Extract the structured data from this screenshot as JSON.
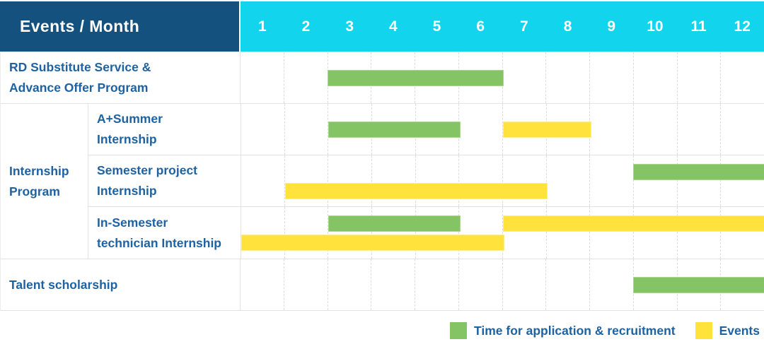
{
  "header": {
    "title": "Events / Month",
    "months": [
      "1",
      "2",
      "3",
      "4",
      "5",
      "6",
      "7",
      "8",
      "9",
      "10",
      "11",
      "12"
    ]
  },
  "colors": {
    "header_bg": "#14517E",
    "month_strip_bg": "#12D4EC",
    "application_green": "#84C464",
    "event_yellow": "#FFE33C",
    "label_text_blue": "#1E62A1"
  },
  "chart_data": {
    "type": "gantt",
    "x_axis_label": "Month",
    "months": [
      1,
      2,
      3,
      4,
      5,
      6,
      7,
      8,
      9,
      10,
      11,
      12
    ],
    "rows": [
      {
        "label": "RD Substitute Service &\nAdvance Offer Program",
        "group": null,
        "bars": [
          {
            "type": "application",
            "start": 3,
            "end": 6,
            "line": "center"
          }
        ]
      },
      {
        "label": "A+Summer\nInternship",
        "group": "Internship\nProgram",
        "bars": [
          {
            "type": "application",
            "start": 3,
            "end": 5,
            "line": "center"
          },
          {
            "type": "event",
            "start": 7,
            "end": 8,
            "line": "center"
          }
        ]
      },
      {
        "label": "Semester project\nInternship",
        "group": "Internship\nProgram",
        "bars": [
          {
            "type": "application",
            "start": 10,
            "end": 12,
            "line": "top"
          },
          {
            "type": "event",
            "start": 2,
            "end": 7,
            "line": "bottom"
          }
        ]
      },
      {
        "label": "In-Semester\ntechnician Internship",
        "group": "Internship\nProgram",
        "bars": [
          {
            "type": "application",
            "start": 3,
            "end": 5,
            "line": "top"
          },
          {
            "type": "event",
            "start": 7,
            "end": 12,
            "line": "top"
          },
          {
            "type": "event",
            "start": 1,
            "end": 6,
            "line": "bottom"
          }
        ]
      },
      {
        "label": "Talent scholarship",
        "group": null,
        "bars": [
          {
            "type": "application",
            "start": 10,
            "end": 12,
            "line": "center"
          }
        ]
      }
    ],
    "legend": [
      {
        "type": "application",
        "label": "Time for application & recruitment",
        "color": "#84C464"
      },
      {
        "type": "event",
        "label": "Events",
        "color": "#FFE33C"
      }
    ]
  },
  "legend": {
    "application_label": "Time for application & recruitment",
    "events_label": "Events"
  }
}
